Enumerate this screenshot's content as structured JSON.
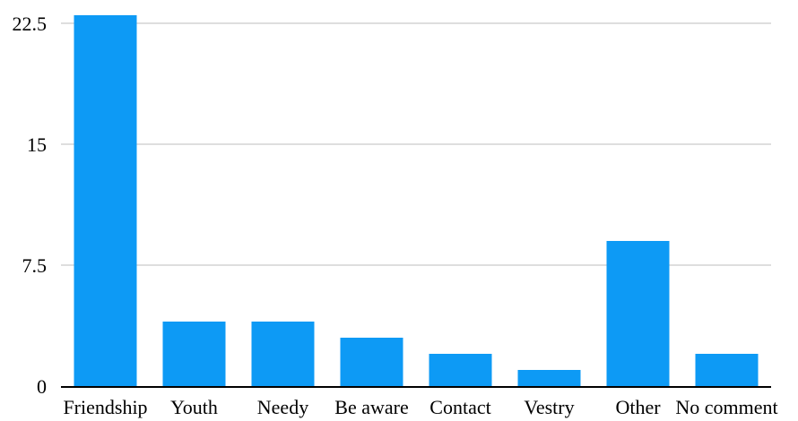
{
  "chart_data": {
    "type": "bar",
    "title": "",
    "xlabel": "",
    "ylabel": "",
    "categories": [
      "Friendship",
      "Youth",
      "Needy",
      "Be aware",
      "Contact",
      "Vestry",
      "Other",
      "No comment"
    ],
    "values": [
      23,
      4,
      4,
      3,
      2,
      1,
      9,
      2
    ],
    "ylim": [
      0,
      22.5
    ],
    "yticks": [
      "0",
      "7.5",
      "15",
      "22.5"
    ],
    "grid": true,
    "bar_color": "#0d9af5",
    "legend": "none"
  }
}
